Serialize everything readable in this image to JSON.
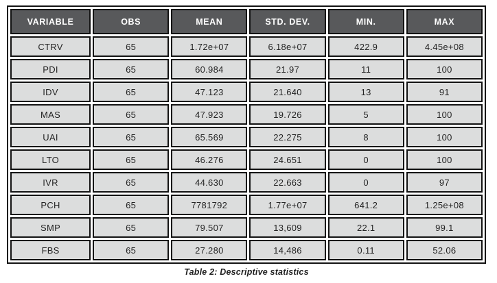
{
  "caption": "Table 2: Descriptive statistics",
  "table": {
    "headers": [
      "VARIABLE",
      "OBS",
      "MEAN",
      "STD. DEV.",
      "MIN.",
      "MAX"
    ],
    "rows": [
      [
        "CTRV",
        "65",
        "1.72e+07",
        "6.18e+07",
        "422.9",
        "4.45e+08"
      ],
      [
        "PDI",
        "65",
        "60.984",
        "21.97",
        "11",
        "100"
      ],
      [
        "IDV",
        "65",
        "47.123",
        "21.640",
        "13",
        "91"
      ],
      [
        "MAS",
        "65",
        "47.923",
        "19.726",
        "5",
        "100"
      ],
      [
        "UAI",
        "65",
        "65.569",
        "22.275",
        "8",
        "100"
      ],
      [
        "LTO",
        "65",
        "46.276",
        "24.651",
        "0",
        "100"
      ],
      [
        "IVR",
        "65",
        "44.630",
        "22.663",
        "0",
        "97"
      ],
      [
        "PCH",
        "65",
        "7781792",
        "1.77e+07",
        "641.2",
        "1.25e+08"
      ],
      [
        "SMP",
        "65",
        "79.507",
        "13,609",
        "22.1",
        "99.1"
      ],
      [
        "FBS",
        "65",
        "27.280",
        "14,486",
        "0.11",
        "52.06"
      ]
    ]
  },
  "colors": {
    "header_bg": "#58595b",
    "header_text": "#ffffff",
    "cell_bg": "#dcdddd",
    "border": "#121212",
    "caption_text": "#1f1f1f"
  },
  "chart_data": {
    "type": "table",
    "title": "Table 2: Descriptive statistics",
    "columns": [
      "VARIABLE",
      "OBS",
      "MEAN",
      "STD. DEV.",
      "MIN.",
      "MAX"
    ],
    "rows": [
      {
        "variable": "CTRV",
        "obs": 65,
        "mean": "1.72e+07",
        "std_dev": "6.18e+07",
        "min": "422.9",
        "max": "4.45e+08"
      },
      {
        "variable": "PDI",
        "obs": 65,
        "mean": "60.984",
        "std_dev": "21.97",
        "min": "11",
        "max": "100"
      },
      {
        "variable": "IDV",
        "obs": 65,
        "mean": "47.123",
        "std_dev": "21.640",
        "min": "13",
        "max": "91"
      },
      {
        "variable": "MAS",
        "obs": 65,
        "mean": "47.923",
        "std_dev": "19.726",
        "min": "5",
        "max": "100"
      },
      {
        "variable": "UAI",
        "obs": 65,
        "mean": "65.569",
        "std_dev": "22.275",
        "min": "8",
        "max": "100"
      },
      {
        "variable": "LTO",
        "obs": 65,
        "mean": "46.276",
        "std_dev": "24.651",
        "min": "0",
        "max": "100"
      },
      {
        "variable": "IVR",
        "obs": 65,
        "mean": "44.630",
        "std_dev": "22.663",
        "min": "0",
        "max": "97"
      },
      {
        "variable": "PCH",
        "obs": 65,
        "mean": "7781792",
        "std_dev": "1.77e+07",
        "min": "641.2",
        "max": "1.25e+08"
      },
      {
        "variable": "SMP",
        "obs": 65,
        "mean": "79.507",
        "std_dev": "13,609",
        "min": "22.1",
        "max": "99.1"
      },
      {
        "variable": "FBS",
        "obs": 65,
        "mean": "27.280",
        "std_dev": "14,486",
        "min": "0.11",
        "max": "52.06"
      }
    ]
  }
}
